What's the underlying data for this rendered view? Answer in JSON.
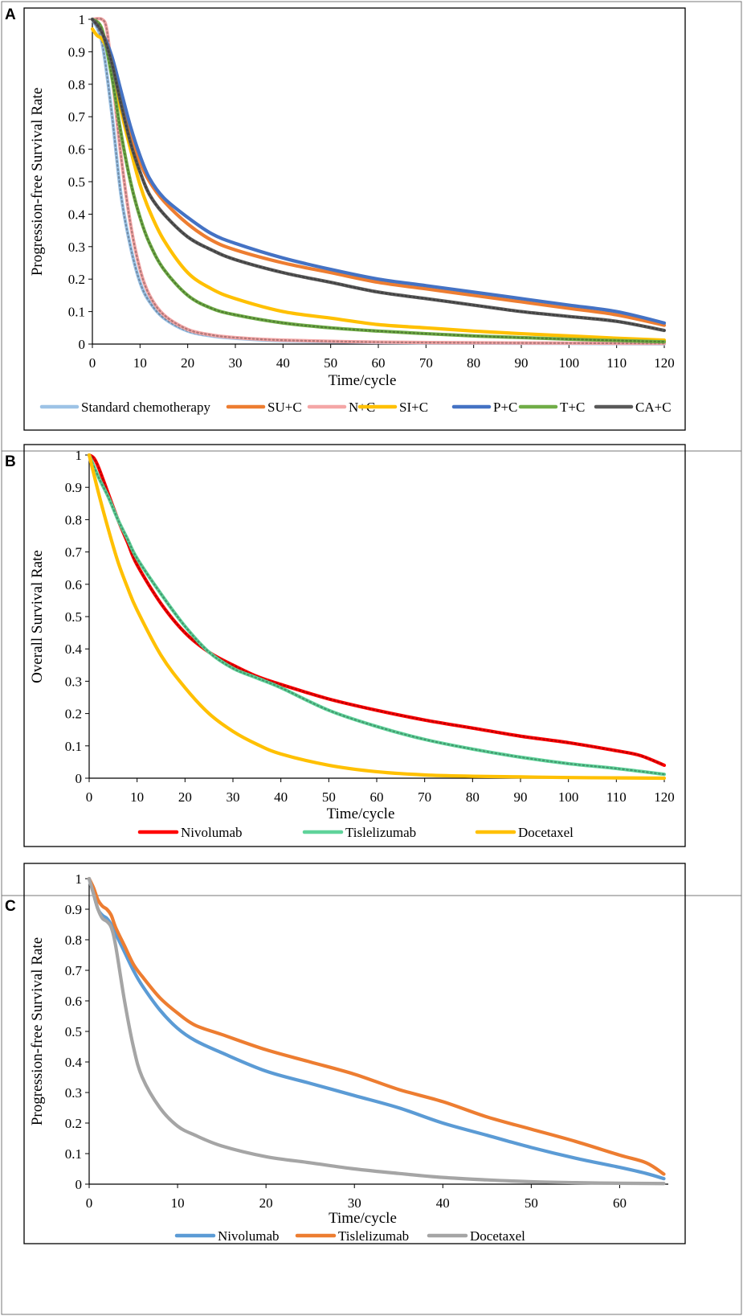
{
  "figure": {
    "panels": [
      "A",
      "B",
      "C"
    ]
  },
  "chart_data": [
    {
      "panel": "A",
      "type": "line",
      "title": "",
      "xlabel": "Time/cycle",
      "ylabel": "Progression-free Survival Rate",
      "xlim": [
        0,
        120
      ],
      "ylim": [
        0,
        1
      ],
      "xticks": [
        0,
        10,
        20,
        30,
        40,
        50,
        60,
        70,
        80,
        90,
        100,
        110,
        120
      ],
      "yticks": [
        0,
        0.1,
        0.2,
        0.3,
        0.4,
        0.5,
        0.6,
        0.7,
        0.8,
        0.9,
        1
      ],
      "legend_position": "bottom",
      "series": [
        {
          "name": "Standard chemotherapy",
          "color": "#9dc3e6",
          "style": "dotted-overlay",
          "x": [
            0,
            2,
            4,
            6,
            8,
            10,
            12,
            15,
            20,
            25,
            30,
            40,
            60,
            80,
            100,
            120
          ],
          "y": [
            1,
            0.93,
            0.72,
            0.46,
            0.3,
            0.19,
            0.13,
            0.08,
            0.04,
            0.025,
            0.018,
            0.01,
            0.005,
            0.003,
            0.002,
            0.001
          ]
        },
        {
          "name": "SU+C",
          "color": "#ed7d31",
          "style": "solid",
          "x": [
            0,
            2,
            4,
            6,
            8,
            10,
            12,
            15,
            20,
            25,
            30,
            40,
            50,
            60,
            70,
            80,
            90,
            100,
            110,
            120
          ],
          "y": [
            1,
            0.96,
            0.88,
            0.76,
            0.65,
            0.56,
            0.5,
            0.44,
            0.37,
            0.32,
            0.29,
            0.25,
            0.22,
            0.19,
            0.17,
            0.15,
            0.13,
            0.11,
            0.09,
            0.058
          ]
        },
        {
          "name": "N+C",
          "color": "#f4a6a6",
          "style": "dotted-overlay",
          "x": [
            0,
            2,
            3,
            4,
            6,
            8,
            10,
            12,
            15,
            20,
            25,
            30,
            40,
            60,
            80,
            100,
            120
          ],
          "y": [
            1,
            1,
            0.97,
            0.85,
            0.58,
            0.37,
            0.23,
            0.15,
            0.09,
            0.045,
            0.028,
            0.02,
            0.012,
            0.006,
            0.004,
            0.003,
            0.002
          ]
        },
        {
          "name": "SI+C",
          "color": "#ffc000",
          "style": "solid",
          "x": [
            0,
            1,
            2,
            3,
            4,
            6,
            8,
            10,
            12,
            15,
            20,
            25,
            30,
            40,
            50,
            60,
            70,
            80,
            90,
            100,
            110,
            120
          ],
          "y": [
            0.97,
            0.95,
            0.94,
            0.91,
            0.85,
            0.72,
            0.6,
            0.49,
            0.41,
            0.32,
            0.22,
            0.17,
            0.14,
            0.1,
            0.08,
            0.06,
            0.05,
            0.04,
            0.032,
            0.025,
            0.018,
            0.012
          ]
        },
        {
          "name": "P+C",
          "color": "#4472c4",
          "style": "solid",
          "x": [
            0,
            2,
            4,
            6,
            8,
            10,
            12,
            15,
            20,
            25,
            30,
            40,
            50,
            60,
            70,
            80,
            90,
            100,
            110,
            120
          ],
          "y": [
            1,
            0.96,
            0.89,
            0.78,
            0.67,
            0.58,
            0.51,
            0.45,
            0.39,
            0.34,
            0.31,
            0.265,
            0.23,
            0.2,
            0.18,
            0.16,
            0.14,
            0.12,
            0.1,
            0.065
          ]
        },
        {
          "name": "T+C",
          "color": "#70ad47",
          "style": "dotted-overlay",
          "x": [
            0,
            2,
            4,
            6,
            8,
            10,
            12,
            15,
            20,
            25,
            30,
            40,
            50,
            60,
            70,
            80,
            90,
            100,
            110,
            120
          ],
          "y": [
            1,
            0.97,
            0.83,
            0.65,
            0.5,
            0.39,
            0.31,
            0.23,
            0.15,
            0.11,
            0.09,
            0.065,
            0.05,
            0.04,
            0.032,
            0.025,
            0.02,
            0.015,
            0.011,
            0.007
          ]
        },
        {
          "name": "CA+C",
          "color": "#595959",
          "style": "dotted-overlay",
          "x": [
            0,
            2,
            4,
            6,
            8,
            10,
            12,
            15,
            20,
            25,
            30,
            40,
            50,
            60,
            70,
            80,
            90,
            100,
            110,
            120
          ],
          "y": [
            1,
            0.96,
            0.87,
            0.74,
            0.62,
            0.53,
            0.46,
            0.4,
            0.33,
            0.29,
            0.26,
            0.22,
            0.19,
            0.16,
            0.14,
            0.12,
            0.1,
            0.085,
            0.07,
            0.042
          ]
        }
      ],
      "legend": [
        "Standard chemotherapy",
        "SU+C",
        "N+C",
        "SI+C",
        "P+C",
        "T+C",
        "CA+C"
      ]
    },
    {
      "panel": "B",
      "type": "line",
      "title": "",
      "xlabel": "Time/cycle",
      "ylabel": "Overall Survival Rate",
      "xlim": [
        0,
        120
      ],
      "ylim": [
        0,
        1
      ],
      "xticks": [
        0,
        10,
        20,
        30,
        40,
        50,
        60,
        70,
        80,
        90,
        100,
        110,
        120
      ],
      "yticks": [
        0,
        0.1,
        0.2,
        0.3,
        0.4,
        0.5,
        0.6,
        0.7,
        0.8,
        0.9,
        1
      ],
      "legend_position": "bottom",
      "series": [
        {
          "name": "Nivolumab",
          "color": "#ff0000",
          "style": "dotted-overlay",
          "x": [
            0,
            1,
            2,
            4,
            6,
            8,
            10,
            15,
            20,
            25,
            30,
            35,
            40,
            50,
            60,
            70,
            80,
            90,
            100,
            110,
            115,
            120
          ],
          "y": [
            1,
            0.99,
            0.96,
            0.88,
            0.8,
            0.73,
            0.66,
            0.54,
            0.45,
            0.39,
            0.35,
            0.315,
            0.29,
            0.245,
            0.21,
            0.18,
            0.155,
            0.13,
            0.11,
            0.085,
            0.07,
            0.04
          ]
        },
        {
          "name": "Tislelizumab",
          "color": "#5fd39a",
          "style": "dotted-overlay",
          "x": [
            0,
            2,
            4,
            6,
            8,
            10,
            15,
            20,
            25,
            30,
            35,
            40,
            50,
            60,
            70,
            80,
            90,
            100,
            110,
            120
          ],
          "y": [
            1,
            0.93,
            0.87,
            0.8,
            0.74,
            0.68,
            0.57,
            0.47,
            0.39,
            0.34,
            0.31,
            0.28,
            0.21,
            0.16,
            0.12,
            0.09,
            0.065,
            0.045,
            0.03,
            0.012
          ]
        },
        {
          "name": "Docetaxel",
          "color": "#ffc000",
          "style": "solid",
          "x": [
            0,
            2,
            4,
            6,
            8,
            10,
            15,
            20,
            25,
            30,
            35,
            40,
            50,
            60,
            70,
            80,
            90,
            100,
            110,
            120
          ],
          "y": [
            1,
            0.88,
            0.77,
            0.67,
            0.59,
            0.52,
            0.38,
            0.28,
            0.2,
            0.145,
            0.105,
            0.075,
            0.04,
            0.02,
            0.01,
            0.006,
            0.004,
            0.002,
            0.001,
            0
          ]
        }
      ],
      "legend": [
        "Nivolumab",
        "Tislelizumab",
        "Docetaxel"
      ]
    },
    {
      "panel": "C",
      "type": "line",
      "title": "",
      "xlabel": "Time/cycle",
      "ylabel": "Progression-free Survival Rate",
      "xlim": [
        0,
        65.5
      ],
      "ylim": [
        0,
        1
      ],
      "xticks": [
        0,
        10,
        20,
        30,
        40,
        50,
        60
      ],
      "yticks": [
        0,
        0.1,
        0.2,
        0.3,
        0.4,
        0.5,
        0.6,
        0.7,
        0.8,
        0.9,
        1
      ],
      "legend_position": "bottom",
      "series": [
        {
          "name": "Nivolumab",
          "color": "#5b9bd5",
          "style": "solid",
          "x": [
            0,
            0.5,
            1,
            1.5,
            2,
            2.5,
            3,
            4,
            5,
            6,
            8,
            10,
            12,
            15,
            20,
            25,
            30,
            35,
            40,
            45,
            50,
            55,
            60,
            63,
            65
          ],
          "y": [
            1,
            0.95,
            0.9,
            0.88,
            0.87,
            0.85,
            0.82,
            0.76,
            0.7,
            0.65,
            0.57,
            0.51,
            0.47,
            0.43,
            0.37,
            0.33,
            0.29,
            0.25,
            0.2,
            0.16,
            0.12,
            0.085,
            0.055,
            0.035,
            0.018
          ]
        },
        {
          "name": "Tislelizumab",
          "color": "#ed7d31",
          "style": "solid",
          "x": [
            0,
            0.5,
            1,
            1.5,
            2,
            2.5,
            3,
            4,
            5,
            6,
            8,
            10,
            12,
            15,
            20,
            25,
            30,
            35,
            40,
            45,
            50,
            55,
            60,
            63,
            65
          ],
          "y": [
            1,
            0.97,
            0.93,
            0.91,
            0.9,
            0.88,
            0.84,
            0.78,
            0.72,
            0.68,
            0.61,
            0.56,
            0.52,
            0.49,
            0.44,
            0.4,
            0.36,
            0.31,
            0.27,
            0.22,
            0.18,
            0.14,
            0.095,
            0.07,
            0.033
          ]
        },
        {
          "name": "Docetaxel",
          "color": "#a5a5a5",
          "style": "solid",
          "x": [
            0,
            0.5,
            1,
            1.5,
            2,
            2.5,
            3,
            4,
            5,
            6,
            8,
            10,
            12,
            15,
            20,
            25,
            30,
            35,
            40,
            45,
            50,
            55,
            60,
            65
          ],
          "y": [
            1,
            0.95,
            0.9,
            0.87,
            0.86,
            0.84,
            0.78,
            0.6,
            0.45,
            0.35,
            0.25,
            0.19,
            0.16,
            0.125,
            0.09,
            0.07,
            0.05,
            0.035,
            0.022,
            0.014,
            0.008,
            0.005,
            0.003,
            0.002
          ]
        }
      ],
      "legend": [
        "Nivolumab",
        "Tislelizumab",
        "Docetaxel"
      ]
    }
  ]
}
